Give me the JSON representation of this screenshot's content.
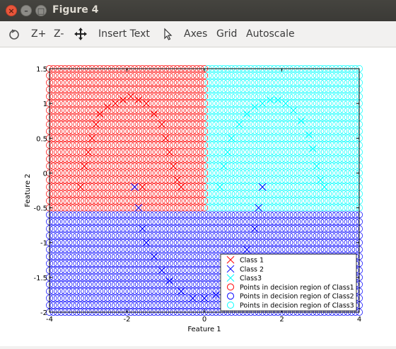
{
  "window": {
    "title": "Figure 4",
    "controls": {
      "close": "×",
      "minimize": "–",
      "maximize": "□"
    }
  },
  "toolbar": {
    "rotate_icon": "rotate-icon",
    "zoom_in": "Z+",
    "zoom_out": "Z-",
    "pan_icon": "pan-icon",
    "insert_text": "Insert Text",
    "select_icon": "select-arrow-icon",
    "axes": "Axes",
    "grid": "Grid",
    "autoscale": "Autoscale"
  },
  "colors": {
    "class1": "#ff0000",
    "class2": "#0000ff",
    "class3": "#00ffff"
  },
  "chart_data": {
    "type": "scatter",
    "xlabel": "Feature 1",
    "ylabel": "Feature 2",
    "xlim": [
      -4,
      4
    ],
    "ylim": [
      -2,
      1.5
    ],
    "xticks": [
      "-4",
      "-2",
      "0",
      "2",
      "4"
    ],
    "yticks": [
      "-2",
      "-1.5",
      "-1",
      "-0.5",
      "0",
      "0.5",
      "1",
      "1.5"
    ],
    "grid": false,
    "legend_position": "bottom-right",
    "legend": [
      {
        "label": "Class 1",
        "marker": "x",
        "color": "#ff0000"
      },
      {
        "label": "Class 2",
        "marker": "x",
        "color": "#0000ff"
      },
      {
        "label": "Class3",
        "marker": "x",
        "color": "#00ffff"
      },
      {
        "label": "Points in decision region of Class1",
        "marker": "o",
        "color": "#ff0000"
      },
      {
        "label": "Points in decision region of Class2",
        "marker": "o",
        "color": "#0000ff"
      },
      {
        "label": "Points in decision region of Class3",
        "marker": "o",
        "color": "#00ffff"
      }
    ],
    "series": [
      {
        "name": "Class 1",
        "marker": "x",
        "points": [
          [
            -3.2,
            -0.2
          ],
          [
            -3.1,
            0.1
          ],
          [
            -3.0,
            0.3
          ],
          [
            -2.9,
            0.5
          ],
          [
            -2.8,
            0.7
          ],
          [
            -2.7,
            0.85
          ],
          [
            -2.5,
            0.95
          ],
          [
            -2.3,
            1.0
          ],
          [
            -2.1,
            1.05
          ],
          [
            -1.9,
            1.1
          ],
          [
            -1.7,
            1.05
          ],
          [
            -1.5,
            1.0
          ],
          [
            -1.3,
            0.85
          ],
          [
            -1.1,
            0.7
          ],
          [
            -1.0,
            0.5
          ],
          [
            -0.9,
            0.3
          ],
          [
            -0.8,
            0.1
          ],
          [
            -0.7,
            -0.1
          ],
          [
            -0.6,
            -0.2
          ],
          [
            -1.6,
            -0.2
          ]
        ]
      },
      {
        "name": "Class 2",
        "marker": "x",
        "points": [
          [
            -1.8,
            -0.2
          ],
          [
            -1.7,
            -0.5
          ],
          [
            -1.6,
            -0.8
          ],
          [
            -1.5,
            -1.0
          ],
          [
            -1.3,
            -1.2
          ],
          [
            -1.1,
            -1.4
          ],
          [
            -0.9,
            -1.55
          ],
          [
            -0.6,
            -1.7
          ],
          [
            -0.3,
            -1.8
          ],
          [
            0.0,
            -1.8
          ],
          [
            0.3,
            -1.75
          ],
          [
            0.6,
            -1.6
          ],
          [
            0.9,
            -1.3
          ],
          [
            1.1,
            -1.1
          ],
          [
            1.3,
            -0.8
          ],
          [
            1.4,
            -0.5
          ],
          [
            1.5,
            -0.2
          ]
        ]
      },
      {
        "name": "Class3",
        "marker": "x",
        "points": [
          [
            0.4,
            -0.2
          ],
          [
            0.5,
            0.1
          ],
          [
            0.6,
            0.3
          ],
          [
            0.7,
            0.5
          ],
          [
            0.9,
            0.7
          ],
          [
            1.1,
            0.85
          ],
          [
            1.3,
            0.95
          ],
          [
            1.5,
            1.0
          ],
          [
            1.7,
            1.05
          ],
          [
            1.9,
            1.05
          ],
          [
            2.1,
            1.0
          ],
          [
            2.3,
            0.9
          ],
          [
            2.5,
            0.75
          ],
          [
            2.7,
            0.55
          ],
          [
            2.8,
            0.35
          ],
          [
            2.9,
            0.1
          ],
          [
            3.0,
            -0.1
          ],
          [
            3.1,
            -0.2
          ]
        ]
      }
    ],
    "decision_regions": [
      {
        "region": "Class1",
        "x_range": [
          -4,
          0
        ],
        "y_range": [
          -0.5,
          1.5
        ]
      },
      {
        "region": "Class3",
        "x_range": [
          0,
          4
        ],
        "y_range": [
          -0.5,
          1.5
        ]
      },
      {
        "region": "Class2",
        "x_range": [
          -4,
          4
        ],
        "y_range": [
          -2,
          -0.5
        ]
      }
    ]
  }
}
